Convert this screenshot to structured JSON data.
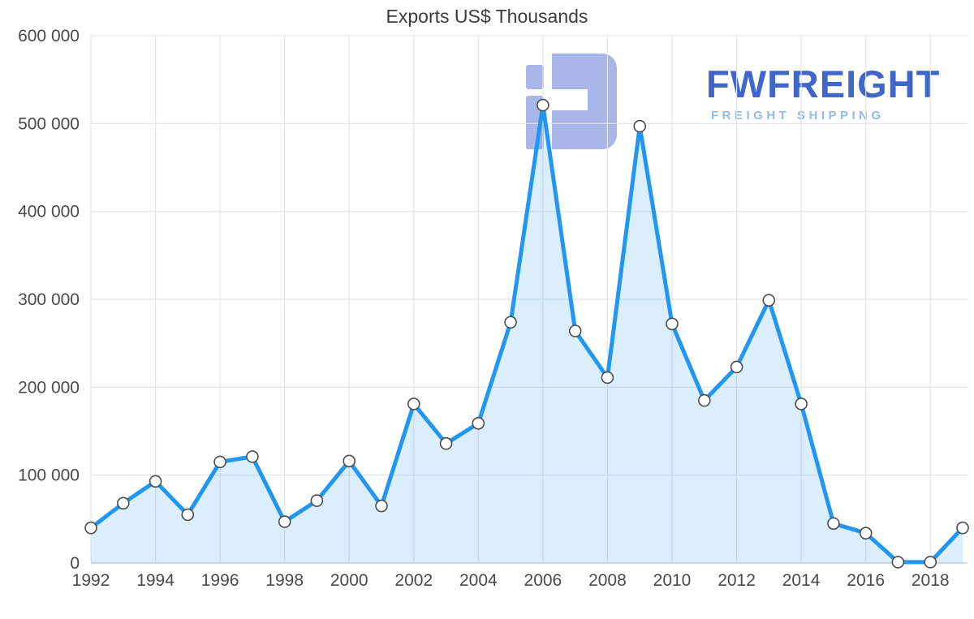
{
  "page": {
    "title": "Exports US$ Thousands"
  },
  "logo": {
    "brand": "FWFREIGHT",
    "tagline": "FREIGHT SHIPPING",
    "brand_color": "#4066cb",
    "tagline_color": "#93bbe9",
    "icon_color": "#a9b6e9"
  },
  "chart_data": {
    "type": "area",
    "title": "Exports US$ Thousands",
    "xlabel": "",
    "ylabel": "",
    "x": [
      1992,
      1993,
      1994,
      1995,
      1996,
      1997,
      1998,
      1999,
      2000,
      2001,
      2002,
      2003,
      2004,
      2005,
      2006,
      2007,
      2008,
      2009,
      2010,
      2011,
      2012,
      2013,
      2014,
      2015,
      2016,
      2017,
      2018,
      2019
    ],
    "values": [
      40000,
      68000,
      93000,
      55000,
      115000,
      121000,
      47000,
      71000,
      116000,
      65000,
      181000,
      136000,
      159000,
      274000,
      521000,
      264000,
      211000,
      497000,
      272000,
      185000,
      223000,
      299000,
      181000,
      45000,
      34000,
      1000,
      1000,
      40000
    ],
    "ylim": [
      0,
      600000
    ],
    "ytick_step": 100000,
    "yticks": [
      "0",
      "100 000",
      "200 000",
      "300 000",
      "400 000",
      "500 000",
      "600 000"
    ],
    "xticks": [
      1992,
      1994,
      1996,
      1998,
      2000,
      2002,
      2004,
      2006,
      2008,
      2010,
      2012,
      2014,
      2016,
      2018
    ],
    "grid": true,
    "legend": "none",
    "line_color": "#2196f3",
    "area_color": "rgba(33,150,243,0.16)",
    "marker_fill": "#ffffff",
    "marker_stroke": "#4d4d4d",
    "axis_text_color": "#4a4a4a",
    "grid_color": "#e3e6e8",
    "axis_line_color": "#c2c7cc"
  }
}
